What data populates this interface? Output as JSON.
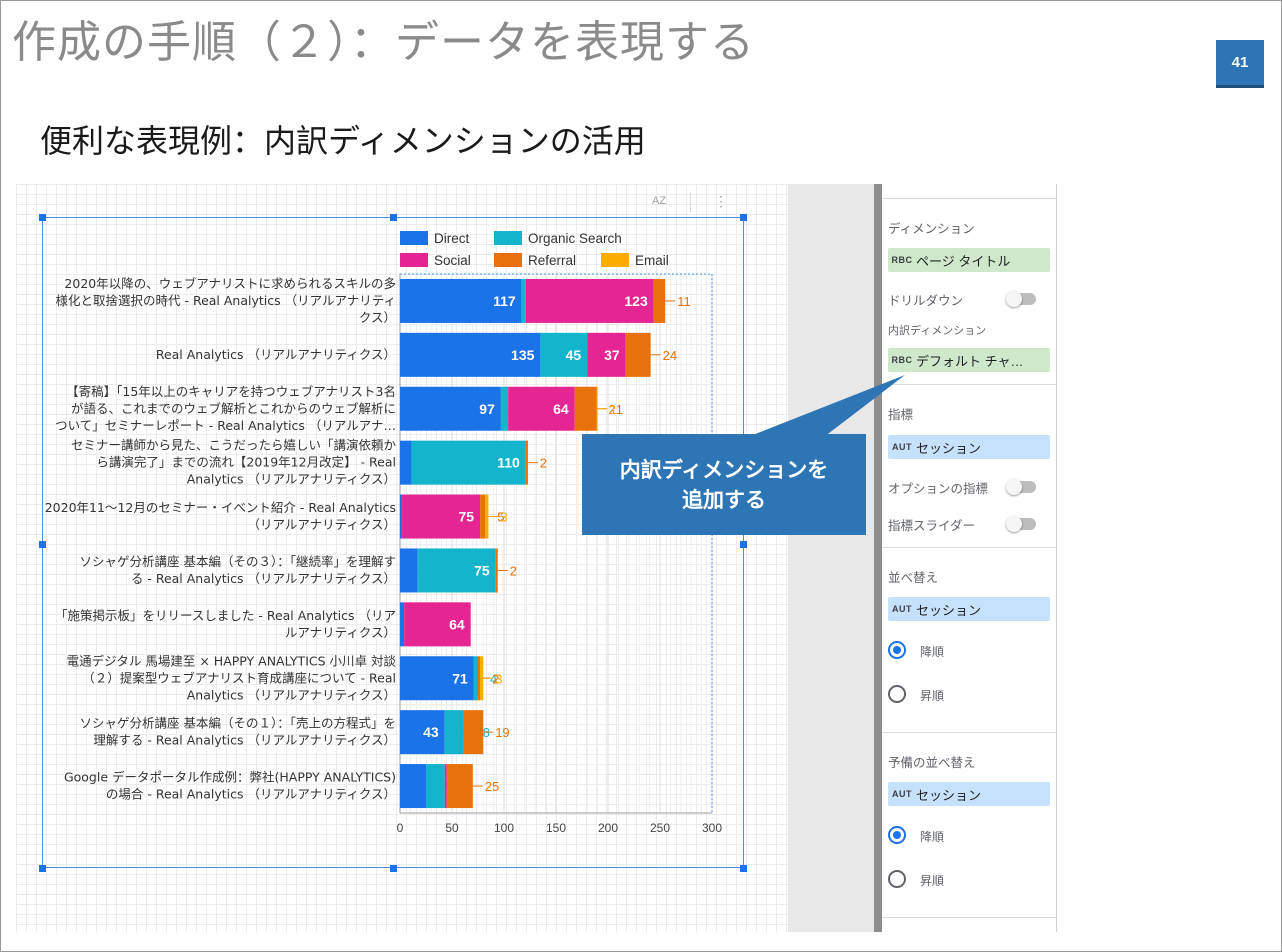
{
  "slide": {
    "title": "作成の手順（２）：データを表現する",
    "page_number": "41",
    "subtitle": "便利な表現例：内訳ディメンションの活用"
  },
  "toolbar": {
    "sort_icon": "sort-az-icon",
    "menu_icon": "more-vert-icon",
    "sort_label": "AZ",
    "menu_label": "⋮"
  },
  "callout": {
    "line1": "内訳ディメンションを",
    "line2": "追加する"
  },
  "panel": {
    "dimension_label": "ディメンション",
    "dimension_chip": "ページ タイトル",
    "dimension_tag": "RBC",
    "drilldown_label": "ドリルダウン",
    "breakdown_label": "内訳ディメンション",
    "breakdown_chip": "デフォルト チャ…",
    "breakdown_tag": "RBC",
    "metric_label": "指標",
    "metric_chip": "セッション",
    "metric_tag": "AUT",
    "optional_metric_label": "オプションの指標",
    "metric_slider_label": "指標スライダー",
    "sort_label": "並べ替え",
    "sort_chip": "セッション",
    "sort_tag": "AUT",
    "sort_desc": "降順",
    "sort_asc": "昇順",
    "secondary_sort_label": "予備の並べ替え",
    "secondary_sort_chip": "セッション",
    "secondary_sort_tag": "AUT",
    "secondary_desc": "降順",
    "secondary_asc": "昇順"
  },
  "colors": {
    "Direct": "#1a73e8",
    "Organic Search": "#12b5cb",
    "Social": "#e52592",
    "Referral": "#e8710a",
    "Email": "#f9ab00"
  },
  "chart_data": {
    "type": "bar",
    "orientation": "horizontal",
    "stacked": true,
    "legend_position": "top",
    "xlim": [
      0,
      300
    ],
    "x_ticks": [
      "0",
      "50",
      "100",
      "150",
      "200",
      "250",
      "300"
    ],
    "grid": true,
    "series_names": [
      "Direct",
      "Organic Search",
      "Social",
      "Referral",
      "Email"
    ],
    "categories": [
      [
        "2020年以降の、ウェブアナリストに求められるスキルの多",
        "様化と取捨選択の時代 - Real Analytics （リアルアナリティ",
        "クス）"
      ],
      [
        "Real Analytics （リアルアナリティクス）"
      ],
      [
        "【寄稿】「15年以上のキャリアを持つウェブアナリスト3名",
        "が語る、これまでのウェブ解析とこれからのウェブ解析に",
        "ついて」セミナーレポート - Real Analytics （リアルアナ…"
      ],
      [
        "セミナー講師から見た、こうだったら嬉しい「講演依頼か",
        "ら講演完了」までの流れ【2019年12月改定】 - Real",
        "Analytics （リアルアナリティクス）"
      ],
      [
        "2020年11～12月のセミナー・イベント紹介 - Real Analytics",
        "（リアルアナリティクス）"
      ],
      [
        "ソシャゲ分析講座 基本編（その３）：「継続率」を理解す",
        "る - Real Analytics （リアルアナリティクス）"
      ],
      [
        "「施策掲示板」をリリースしました - Real Analytics （リア",
        "ルアナリティクス）"
      ],
      [
        "電通デジタル 馬場建至 × HAPPY ANALYTICS 小川卓 対談",
        "（２）提案型ウェブアナリスト育成講座について - Real",
        "Analytics （リアルアナリティクス）"
      ],
      [
        "ソシャゲ分析講座 基本編（その１）：「売上の方程式」を",
        "理解する - Real Analytics （リアルアナリティクス）"
      ],
      [
        "Google データポータル作成例：弊社(HAPPY ANALYTICS)",
        "の場合 - Real Analytics （リアルアナリティクス）"
      ]
    ],
    "rows": [
      [
        117,
        4,
        123,
        11,
        0
      ],
      [
        135,
        45,
        37,
        24,
        0
      ],
      [
        97,
        7,
        64,
        21,
        1
      ],
      [
        11,
        110,
        0,
        2,
        0
      ],
      [
        2,
        0,
        75,
        5,
        3
      ],
      [
        17,
        75,
        0,
        2,
        0
      ],
      [
        4,
        0,
        64,
        0,
        0
      ],
      [
        71,
        4,
        0,
        2,
        3
      ],
      [
        43,
        18,
        0,
        19,
        0
      ],
      [
        25,
        18,
        2,
        25,
        0
      ]
    ]
  }
}
